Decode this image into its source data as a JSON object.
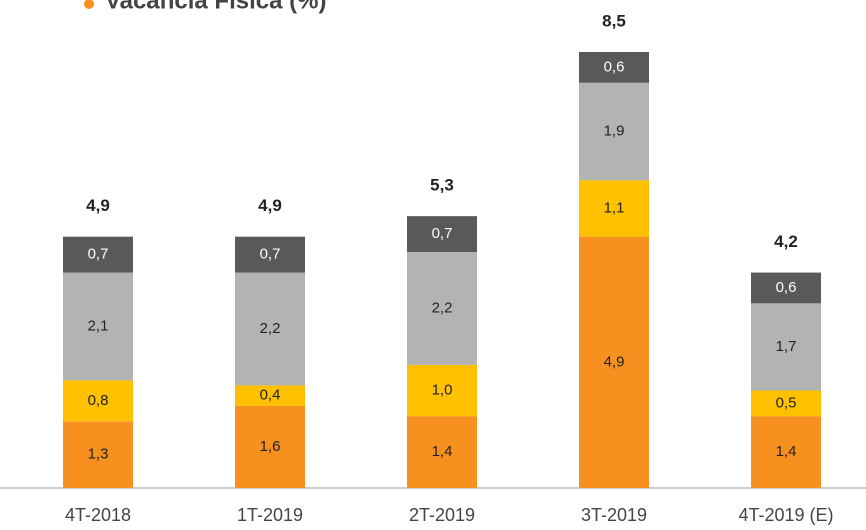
{
  "chart_data": {
    "type": "stacked_bar",
    "title": "Vacância Física (%)",
    "categories": [
      "4T-2018",
      "1T-2019",
      "2T-2019",
      "3T-2019",
      "4T-2019 (E)"
    ],
    "series": [
      {
        "color": "#f7901e",
        "values": [
          1.3,
          1.6,
          1.4,
          4.9,
          1.4
        ],
        "value_labels": [
          "1,3",
          "1,6",
          "1,4",
          "4,9",
          "1,4"
        ]
      },
      {
        "color": "#ffc000",
        "values": [
          0.8,
          0.4,
          1.0,
          1.1,
          0.5
        ],
        "value_labels": [
          "0,8",
          "0,4",
          "1,0",
          "1,1",
          "0,5"
        ]
      },
      {
        "color": "#b3b3b3",
        "values": [
          2.1,
          2.2,
          2.2,
          1.9,
          1.7
        ],
        "value_labels": [
          "2,1",
          "2,2",
          "2,2",
          "1,9",
          "1,7"
        ]
      },
      {
        "color": "#595959",
        "values": [
          0.7,
          0.7,
          0.7,
          0.6,
          0.6
        ],
        "value_labels": [
          "0,7",
          "0,7",
          "0,7",
          "0,6",
          "0,6"
        ]
      }
    ],
    "totals": [
      4.9,
      4.9,
      5.3,
      8.5,
      4.2
    ],
    "total_labels": [
      "4,9",
      "4,9",
      "5,3",
      "8,5",
      "4,2"
    ],
    "ylim": [
      0,
      8.5
    ]
  }
}
